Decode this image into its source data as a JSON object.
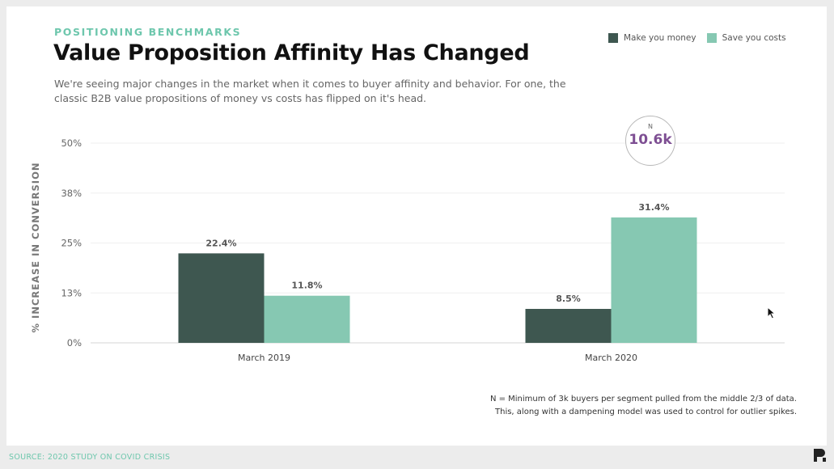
{
  "header": {
    "eyebrow": "POSITIONING BENCHMARKS",
    "title": "Value Proposition Affinity Has Changed",
    "subtitle": "We're seeing major changes in the market when it comes to buyer affinity and behavior. For one, the classic B2B value propositions of money vs costs has flipped on it's head."
  },
  "badge": {
    "label": "N",
    "value": "10.6k"
  },
  "footnote": {
    "line1": "N = Minimum of 3k buyers per segment pulled from the middle 2/3 of data.",
    "line2": "This, along with a dampening model was used to control for outlier spikes."
  },
  "source": "SOURCE: 2020 STUDY ON COVID CRISIS",
  "colors": {
    "money": "#3e5750",
    "costs": "#86c8b2",
    "accent": "#6ec7ad",
    "badge": "#7e4f93"
  },
  "chart_data": {
    "type": "bar",
    "title": "",
    "xlabel": "",
    "ylabel": "% INCREASE IN CONVERSION",
    "categories": [
      "March 2019",
      "March 2020"
    ],
    "series": [
      {
        "name": "Make you money",
        "values": [
          22.4,
          8.5
        ],
        "labels": [
          "22.4%",
          "8.5%"
        ]
      },
      {
        "name": "Save you costs",
        "values": [
          11.8,
          31.4
        ],
        "labels": [
          "11.8%",
          "31.4%"
        ]
      }
    ],
    "ylim": [
      0,
      50
    ],
    "yticks": [
      0,
      12.5,
      25,
      37.5,
      50
    ],
    "ytick_labels": [
      "0%",
      "13%",
      "25%",
      "38%",
      "50%"
    ],
    "grid": true,
    "legend": "top-right"
  }
}
